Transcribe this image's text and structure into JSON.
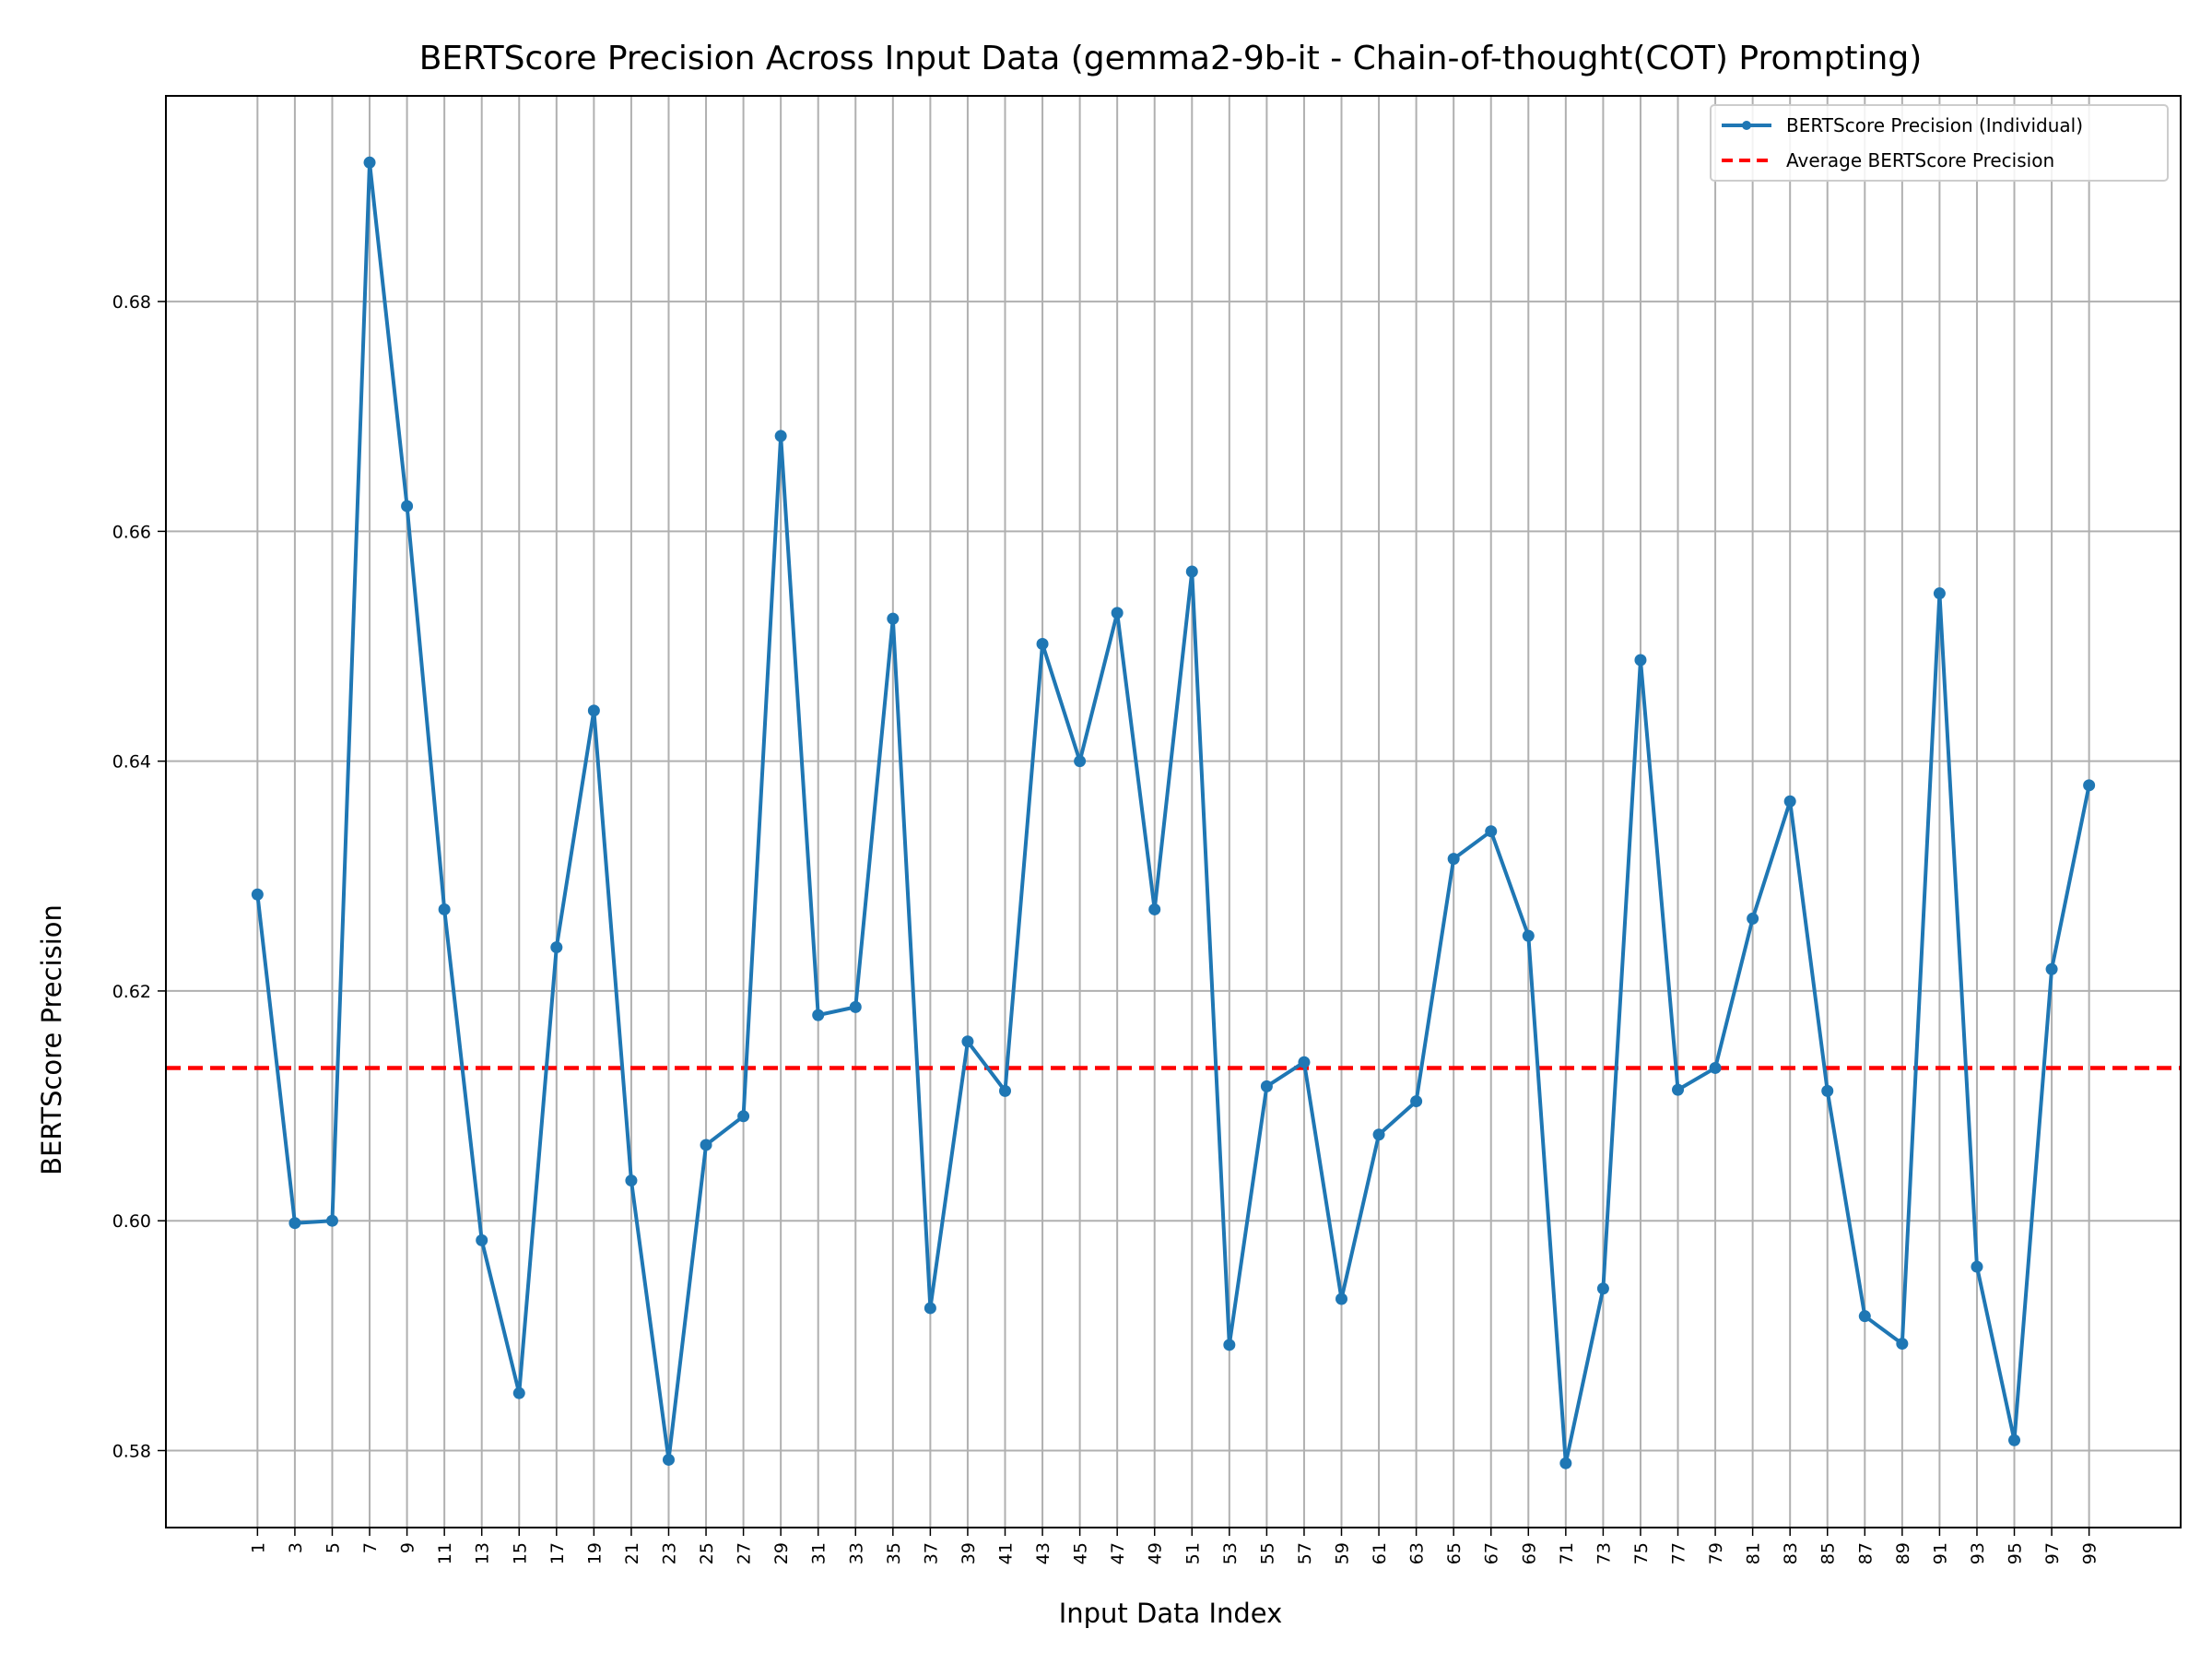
{
  "chart_data": {
    "type": "line",
    "title": "BERTScore Precision Across Input Data (gemma2-9b-it - Chain-of-thought(COT) Prompting)",
    "xlabel": "Input Data Index",
    "ylabel": "BERTScore Precision",
    "x": [
      1,
      3,
      5,
      7,
      9,
      11,
      13,
      15,
      17,
      19,
      21,
      23,
      25,
      27,
      29,
      31,
      33,
      35,
      37,
      39,
      41,
      43,
      45,
      47,
      49,
      51,
      53,
      55,
      57,
      59,
      61,
      63,
      65,
      67,
      69,
      71,
      73,
      75,
      77,
      79,
      81,
      83,
      85,
      87,
      89,
      91,
      93,
      95,
      97,
      99
    ],
    "x_tick_labels": [
      "1",
      "3",
      "5",
      "7",
      "9",
      "11",
      "13",
      "15",
      "17",
      "19",
      "21",
      "23",
      "25",
      "27",
      "29",
      "31",
      "33",
      "35",
      "37",
      "39",
      "41",
      "43",
      "45",
      "47",
      "49",
      "51",
      "53",
      "55",
      "57",
      "59",
      "61",
      "63",
      "65",
      "67",
      "69",
      "71",
      "73",
      "75",
      "77",
      "79",
      "81",
      "83",
      "85",
      "87",
      "89",
      "91",
      "93",
      "95",
      "97",
      "99"
    ],
    "xlim": [
      -3.9,
      103.9
    ],
    "ylim": [
      0.5733,
      0.6979
    ],
    "y_ticks": [
      0.58,
      0.6,
      0.62,
      0.64,
      0.66,
      0.68
    ],
    "y_tick_labels": [
      "0.58",
      "0.60",
      "0.62",
      "0.64",
      "0.66",
      "0.68"
    ],
    "grid": true,
    "legend_position": "top-right",
    "series": [
      {
        "name": "BERTScore Precision (Individual)",
        "color": "#1f77b4",
        "style": "solid-with-markers",
        "values": [
          0.6284,
          0.5998,
          0.6,
          0.6921,
          0.6622,
          0.6271,
          0.5983,
          0.585,
          0.6238,
          0.6444,
          0.6035,
          0.5792,
          0.6066,
          0.6091,
          0.6683,
          0.6179,
          0.6186,
          0.6524,
          0.5924,
          0.6156,
          0.6113,
          0.6502,
          0.64,
          0.6529,
          0.6271,
          0.6565,
          0.5892,
          0.6117,
          0.6138,
          0.5932,
          0.6075,
          0.6104,
          0.6315,
          0.6339,
          0.6248,
          0.5789,
          0.5941,
          0.6488,
          0.6114,
          0.6133,
          0.6263,
          0.6365,
          0.6113,
          0.5917,
          0.5893,
          0.6546,
          0.596,
          0.5809,
          0.6219,
          0.6379
        ]
      },
      {
        "name": "Average BERTScore Precision",
        "color": "#ff0000",
        "style": "dashed",
        "value": 0.6133
      }
    ]
  }
}
